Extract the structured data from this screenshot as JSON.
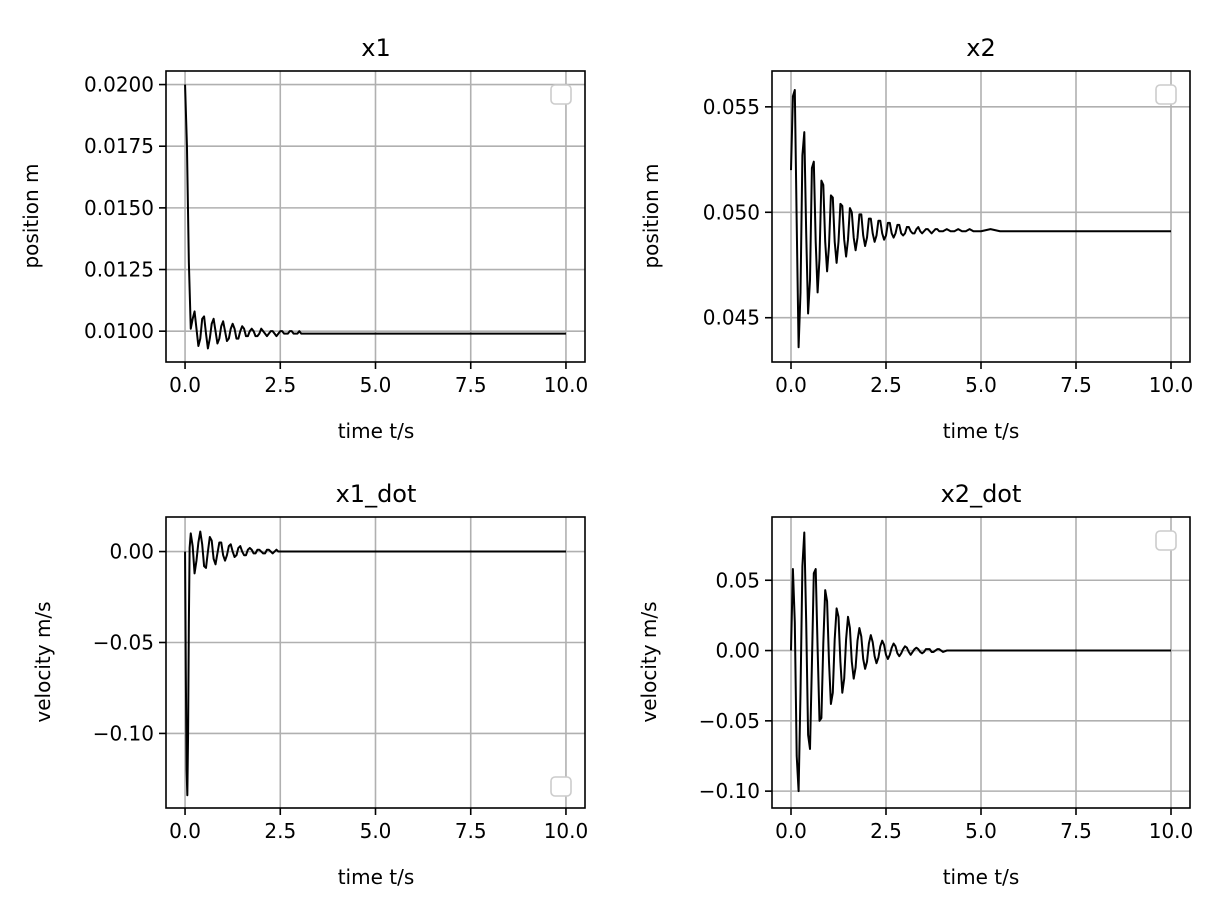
{
  "figure": {
    "background": "#ffffff",
    "line_color": "#000000",
    "grid_color": "#b0b0b0",
    "legend_color": "#cccccc"
  },
  "chart_data": [
    {
      "type": "line",
      "title": "x1",
      "xlabel": "time t/s",
      "ylabel": "position m",
      "xlim": [
        -0.5,
        10.5
      ],
      "ylim": [
        0.00875,
        0.02055
      ],
      "xticks": [
        0.0,
        2.5,
        5.0,
        7.5,
        10.0
      ],
      "xtick_labels": [
        "0.0",
        "2.5",
        "5.0",
        "7.5",
        "10.0"
      ],
      "yticks": [
        0.01,
        0.0125,
        0.015,
        0.0175,
        0.02
      ],
      "ytick_labels": [
        "0.0100",
        "0.0125",
        "0.0150",
        "0.0175",
        "0.0200"
      ],
      "grid": true,
      "legend": "top-right",
      "legend_entries": [],
      "series": [
        {
          "x": [
            0.0,
            0.05,
            0.1,
            0.15,
            0.2,
            0.25,
            0.3,
            0.35,
            0.4,
            0.45,
            0.5,
            0.55,
            0.6,
            0.65,
            0.7,
            0.75,
            0.8,
            0.85,
            0.9,
            0.95,
            1.0,
            1.05,
            1.1,
            1.15,
            1.2,
            1.25,
            1.3,
            1.35,
            1.4,
            1.45,
            1.5,
            1.55,
            1.6,
            1.65,
            1.7,
            1.75,
            1.8,
            1.85,
            1.9,
            1.95,
            2.0,
            2.05,
            2.1,
            2.15,
            2.2,
            2.25,
            2.3,
            2.35,
            2.4,
            2.45,
            2.5,
            2.55,
            2.6,
            2.65,
            2.7,
            2.75,
            2.8,
            2.85,
            2.9,
            2.95,
            3.0,
            3.05,
            3.1,
            3.15,
            3.2,
            3.25,
            3.3,
            3.35,
            3.4,
            3.45,
            3.5,
            3.55,
            3.6,
            3.65,
            3.7,
            3.75,
            3.8,
            3.85,
            3.9,
            3.95,
            4.0,
            4.1,
            4.2,
            4.3,
            4.4,
            4.5,
            4.6,
            4.7,
            4.8,
            4.9,
            5.0,
            5.25,
            5.5,
            5.75,
            6.0,
            6.5,
            7.0,
            7.5,
            8.0,
            8.5,
            9.0,
            9.5,
            10.0
          ],
          "y": [
            0.02,
            0.0175,
            0.0128,
            0.0101,
            0.0105,
            0.0108,
            0.0101,
            0.0094,
            0.0097,
            0.0105,
            0.0106,
            0.0099,
            0.0093,
            0.0097,
            0.0103,
            0.0105,
            0.01,
            0.0095,
            0.0097,
            0.0102,
            0.0104,
            0.01,
            0.0096,
            0.0097,
            0.0101,
            0.0103,
            0.0101,
            0.0097,
            0.0097,
            0.01,
            0.0102,
            0.0101,
            0.0098,
            0.0098,
            0.01,
            0.0101,
            0.01,
            0.0098,
            0.0098,
            0.0099,
            0.0101,
            0.01,
            0.0099,
            0.0098,
            0.0099,
            0.01,
            0.01,
            0.0099,
            0.0098,
            0.0099,
            0.01,
            0.01,
            0.0099,
            0.0099,
            0.0099,
            0.01,
            0.01,
            0.0099,
            0.0099,
            0.0099,
            0.01,
            0.0099,
            0.0099,
            0.0099,
            0.0099,
            0.0099,
            0.0099,
            0.0099,
            0.0099,
            0.0099,
            0.0099,
            0.0099,
            0.0099,
            0.0099,
            0.0099,
            0.0099,
            0.0099,
            0.0099,
            0.0099,
            0.0099,
            0.0099,
            0.0099,
            0.0099,
            0.0099,
            0.0099,
            0.0099,
            0.0099,
            0.0099,
            0.0099,
            0.0099,
            0.0099,
            0.0099,
            0.0099,
            0.0099,
            0.0099,
            0.0099,
            0.0099,
            0.0099,
            0.0099,
            0.0099,
            0.0099,
            0.0099,
            0.0099
          ]
        }
      ]
    },
    {
      "type": "line",
      "title": "x2",
      "xlabel": "time t/s",
      "ylabel": "position m",
      "xlim": [
        -0.5,
        10.5
      ],
      "ylim": [
        0.0429,
        0.0567
      ],
      "xticks": [
        0.0,
        2.5,
        5.0,
        7.5,
        10.0
      ],
      "xtick_labels": [
        "0.0",
        "2.5",
        "5.0",
        "7.5",
        "10.0"
      ],
      "yticks": [
        0.045,
        0.05,
        0.055
      ],
      "ytick_labels": [
        "0.045",
        "0.050",
        "0.055"
      ],
      "grid": true,
      "legend": "top-right",
      "legend_entries": [],
      "series": [
        {
          "x": [
            0.0,
            0.05,
            0.1,
            0.15,
            0.2,
            0.25,
            0.3,
            0.35,
            0.4,
            0.45,
            0.5,
            0.55,
            0.6,
            0.65,
            0.7,
            0.75,
            0.8,
            0.85,
            0.9,
            0.95,
            1.0,
            1.05,
            1.1,
            1.15,
            1.2,
            1.25,
            1.3,
            1.35,
            1.4,
            1.45,
            1.5,
            1.55,
            1.6,
            1.65,
            1.7,
            1.75,
            1.8,
            1.85,
            1.9,
            1.95,
            2.0,
            2.05,
            2.1,
            2.15,
            2.2,
            2.25,
            2.3,
            2.35,
            2.4,
            2.45,
            2.5,
            2.55,
            2.6,
            2.65,
            2.7,
            2.75,
            2.8,
            2.85,
            2.9,
            2.95,
            3.0,
            3.05,
            3.1,
            3.15,
            3.2,
            3.25,
            3.3,
            3.35,
            3.4,
            3.45,
            3.5,
            3.55,
            3.6,
            3.65,
            3.7,
            3.75,
            3.8,
            3.85,
            3.9,
            3.95,
            4.0,
            4.1,
            4.2,
            4.3,
            4.4,
            4.5,
            4.6,
            4.7,
            4.8,
            4.9,
            5.0,
            5.25,
            5.5,
            5.75,
            6.0,
            6.5,
            7.0,
            7.5,
            8.0,
            8.5,
            9.0,
            9.5,
            10.0
          ],
          "y": [
            0.052,
            0.0555,
            0.0558,
            0.0495,
            0.0436,
            0.0462,
            0.0527,
            0.0538,
            0.049,
            0.0452,
            0.0468,
            0.0521,
            0.0524,
            0.0486,
            0.0462,
            0.0478,
            0.0515,
            0.0513,
            0.0486,
            0.0472,
            0.0484,
            0.0508,
            0.0507,
            0.0486,
            0.0476,
            0.0486,
            0.0504,
            0.0503,
            0.0487,
            0.0479,
            0.0487,
            0.0502,
            0.05,
            0.0488,
            0.0482,
            0.0488,
            0.0499,
            0.0499,
            0.0489,
            0.0484,
            0.0488,
            0.0497,
            0.0497,
            0.049,
            0.0486,
            0.0489,
            0.0496,
            0.0496,
            0.049,
            0.0487,
            0.0489,
            0.0495,
            0.0495,
            0.049,
            0.0488,
            0.049,
            0.0494,
            0.0494,
            0.049,
            0.0489,
            0.049,
            0.0493,
            0.0493,
            0.0491,
            0.049,
            0.049,
            0.0492,
            0.0493,
            0.0491,
            0.049,
            0.0491,
            0.0492,
            0.0492,
            0.0491,
            0.049,
            0.0491,
            0.0492,
            0.0492,
            0.0491,
            0.0491,
            0.0491,
            0.0492,
            0.0491,
            0.0491,
            0.0492,
            0.0491,
            0.0491,
            0.0492,
            0.0491,
            0.0491,
            0.0491,
            0.0492,
            0.0491,
            0.0491,
            0.0491,
            0.0491,
            0.0491,
            0.0491,
            0.0491,
            0.0491,
            0.0491,
            0.0491,
            0.0491
          ]
        }
      ]
    },
    {
      "type": "line",
      "title": "x1_dot",
      "xlabel": "time t/s",
      "ylabel": "velocity m/s",
      "xlim": [
        -0.5,
        10.5
      ],
      "ylim": [
        -0.141,
        0.019
      ],
      "xticks": [
        0.0,
        2.5,
        5.0,
        7.5,
        10.0
      ],
      "xtick_labels": [
        "0.0",
        "2.5",
        "5.0",
        "7.5",
        "10.0"
      ],
      "yticks": [
        -0.1,
        -0.05,
        0.0
      ],
      "ytick_labels": [
        "−0.10",
        "−0.05",
        "0.00"
      ],
      "grid": true,
      "legend": "bottom-right",
      "legend_entries": [],
      "series": [
        {
          "x": [
            0.0,
            0.02,
            0.04,
            0.06,
            0.08,
            0.1,
            0.12,
            0.15,
            0.2,
            0.25,
            0.3,
            0.35,
            0.4,
            0.45,
            0.5,
            0.55,
            0.6,
            0.65,
            0.7,
            0.75,
            0.8,
            0.85,
            0.9,
            0.95,
            1.0,
            1.05,
            1.1,
            1.15,
            1.2,
            1.25,
            1.3,
            1.35,
            1.4,
            1.45,
            1.5,
            1.55,
            1.6,
            1.65,
            1.7,
            1.75,
            1.8,
            1.85,
            1.9,
            1.95,
            2.0,
            2.05,
            2.1,
            2.15,
            2.2,
            2.25,
            2.3,
            2.35,
            2.4,
            2.45,
            2.5,
            2.55,
            2.6,
            2.65,
            2.7,
            2.75,
            2.8,
            2.85,
            2.9,
            2.95,
            3.0,
            3.1,
            3.2,
            3.3,
            3.4,
            3.5,
            3.6,
            3.7,
            3.8,
            3.9,
            4.0,
            4.2,
            4.4,
            4.6,
            4.8,
            5.0,
            5.5,
            6.0,
            6.5,
            7.0,
            7.5,
            8.0,
            9.0,
            10.0
          ],
          "y": [
            0.0,
            -0.065,
            -0.12,
            -0.134,
            -0.1,
            -0.04,
            0.002,
            0.01,
            0.003,
            -0.012,
            -0.005,
            0.005,
            0.011,
            0.004,
            -0.008,
            -0.009,
            0.0,
            0.008,
            0.006,
            -0.004,
            -0.007,
            -0.001,
            0.005,
            0.005,
            -0.002,
            -0.005,
            -0.002,
            0.003,
            0.004,
            0.0,
            -0.003,
            -0.002,
            0.002,
            0.003,
            0.0,
            -0.002,
            -0.002,
            0.001,
            0.002,
            0.001,
            -0.001,
            -0.001,
            0.001,
            0.001,
            0.0,
            -0.001,
            -0.001,
            0.001,
            0.001,
            0.0,
            -0.001,
            0.0,
            0.001,
            0.0,
            0.0,
            0.0,
            0.0,
            0.0,
            0.0,
            0.0,
            0.0,
            0.0,
            0.0,
            0.0,
            0.0,
            0.0,
            0.0,
            0.0,
            0.0,
            0.0,
            0.0,
            0.0,
            0.0,
            0.0,
            0.0,
            0.0,
            0.0,
            0.0,
            0.0,
            0.0,
            0.0,
            0.0,
            0.0,
            0.0,
            0.0,
            0.0,
            0.0,
            0.0
          ]
        }
      ]
    },
    {
      "type": "line",
      "title": "x2_dot",
      "xlabel": "time t/s",
      "ylabel": "velocity m/s",
      "xlim": [
        -0.5,
        10.5
      ],
      "ylim": [
        -0.112,
        0.095
      ],
      "xticks": [
        0.0,
        2.5,
        5.0,
        7.5,
        10.0
      ],
      "xtick_labels": [
        "0.0",
        "2.5",
        "5.0",
        "7.5",
        "10.0"
      ],
      "yticks": [
        -0.1,
        -0.05,
        0.0,
        0.05
      ],
      "ytick_labels": [
        "−0.10",
        "−0.05",
        "0.00",
        "0.05"
      ],
      "grid": true,
      "legend": "top-right",
      "legend_entries": [],
      "series": [
        {
          "x": [
            0.0,
            0.05,
            0.1,
            0.15,
            0.2,
            0.25,
            0.3,
            0.35,
            0.4,
            0.45,
            0.5,
            0.55,
            0.6,
            0.65,
            0.7,
            0.75,
            0.8,
            0.85,
            0.9,
            0.95,
            1.0,
            1.05,
            1.1,
            1.15,
            1.2,
            1.25,
            1.3,
            1.35,
            1.4,
            1.45,
            1.5,
            1.55,
            1.6,
            1.65,
            1.7,
            1.75,
            1.8,
            1.85,
            1.9,
            1.95,
            2.0,
            2.05,
            2.1,
            2.15,
            2.2,
            2.25,
            2.3,
            2.35,
            2.4,
            2.45,
            2.5,
            2.55,
            2.6,
            2.65,
            2.7,
            2.75,
            2.8,
            2.85,
            2.9,
            2.95,
            3.0,
            3.05,
            3.1,
            3.15,
            3.2,
            3.25,
            3.3,
            3.35,
            3.4,
            3.45,
            3.5,
            3.55,
            3.6,
            3.65,
            3.7,
            3.75,
            3.8,
            3.85,
            3.9,
            3.95,
            4.0,
            4.1,
            4.2,
            4.3,
            4.4,
            4.5,
            4.6,
            4.7,
            4.8,
            4.9,
            5.0,
            5.25,
            5.5,
            5.75,
            6.0,
            6.5,
            7.0,
            7.5,
            8.0,
            8.5,
            9.0,
            9.5,
            10.0
          ],
          "y": [
            0.0,
            0.058,
            0.02,
            -0.075,
            -0.1,
            -0.03,
            0.06,
            0.084,
            0.02,
            -0.06,
            -0.07,
            -0.01,
            0.055,
            0.058,
            0.002,
            -0.05,
            -0.048,
            0.005,
            0.043,
            0.035,
            -0.008,
            -0.038,
            -0.03,
            0.008,
            0.03,
            0.024,
            -0.008,
            -0.03,
            -0.02,
            0.008,
            0.024,
            0.016,
            -0.008,
            -0.02,
            -0.012,
            0.007,
            0.016,
            0.01,
            -0.006,
            -0.013,
            -0.008,
            0.005,
            0.011,
            0.006,
            -0.004,
            -0.009,
            -0.005,
            0.003,
            0.007,
            0.004,
            -0.003,
            -0.006,
            -0.003,
            0.002,
            0.005,
            0.003,
            -0.002,
            -0.004,
            -0.002,
            0.001,
            0.003,
            0.002,
            -0.001,
            -0.003,
            -0.001,
            0.001,
            0.002,
            0.001,
            -0.001,
            -0.002,
            -0.001,
            0.001,
            0.001,
            0.001,
            -0.001,
            -0.001,
            0.0,
            0.001,
            0.001,
            0.0,
            -0.001,
            0.0,
            0.0,
            0.0,
            0.0,
            0.0,
            0.0,
            0.0,
            0.0,
            0.0,
            0.0,
            0.0,
            0.0,
            0.0,
            0.0,
            0.0,
            0.0,
            0.0,
            0.0,
            0.0,
            0.0,
            0.0,
            0.0
          ]
        }
      ]
    }
  ]
}
